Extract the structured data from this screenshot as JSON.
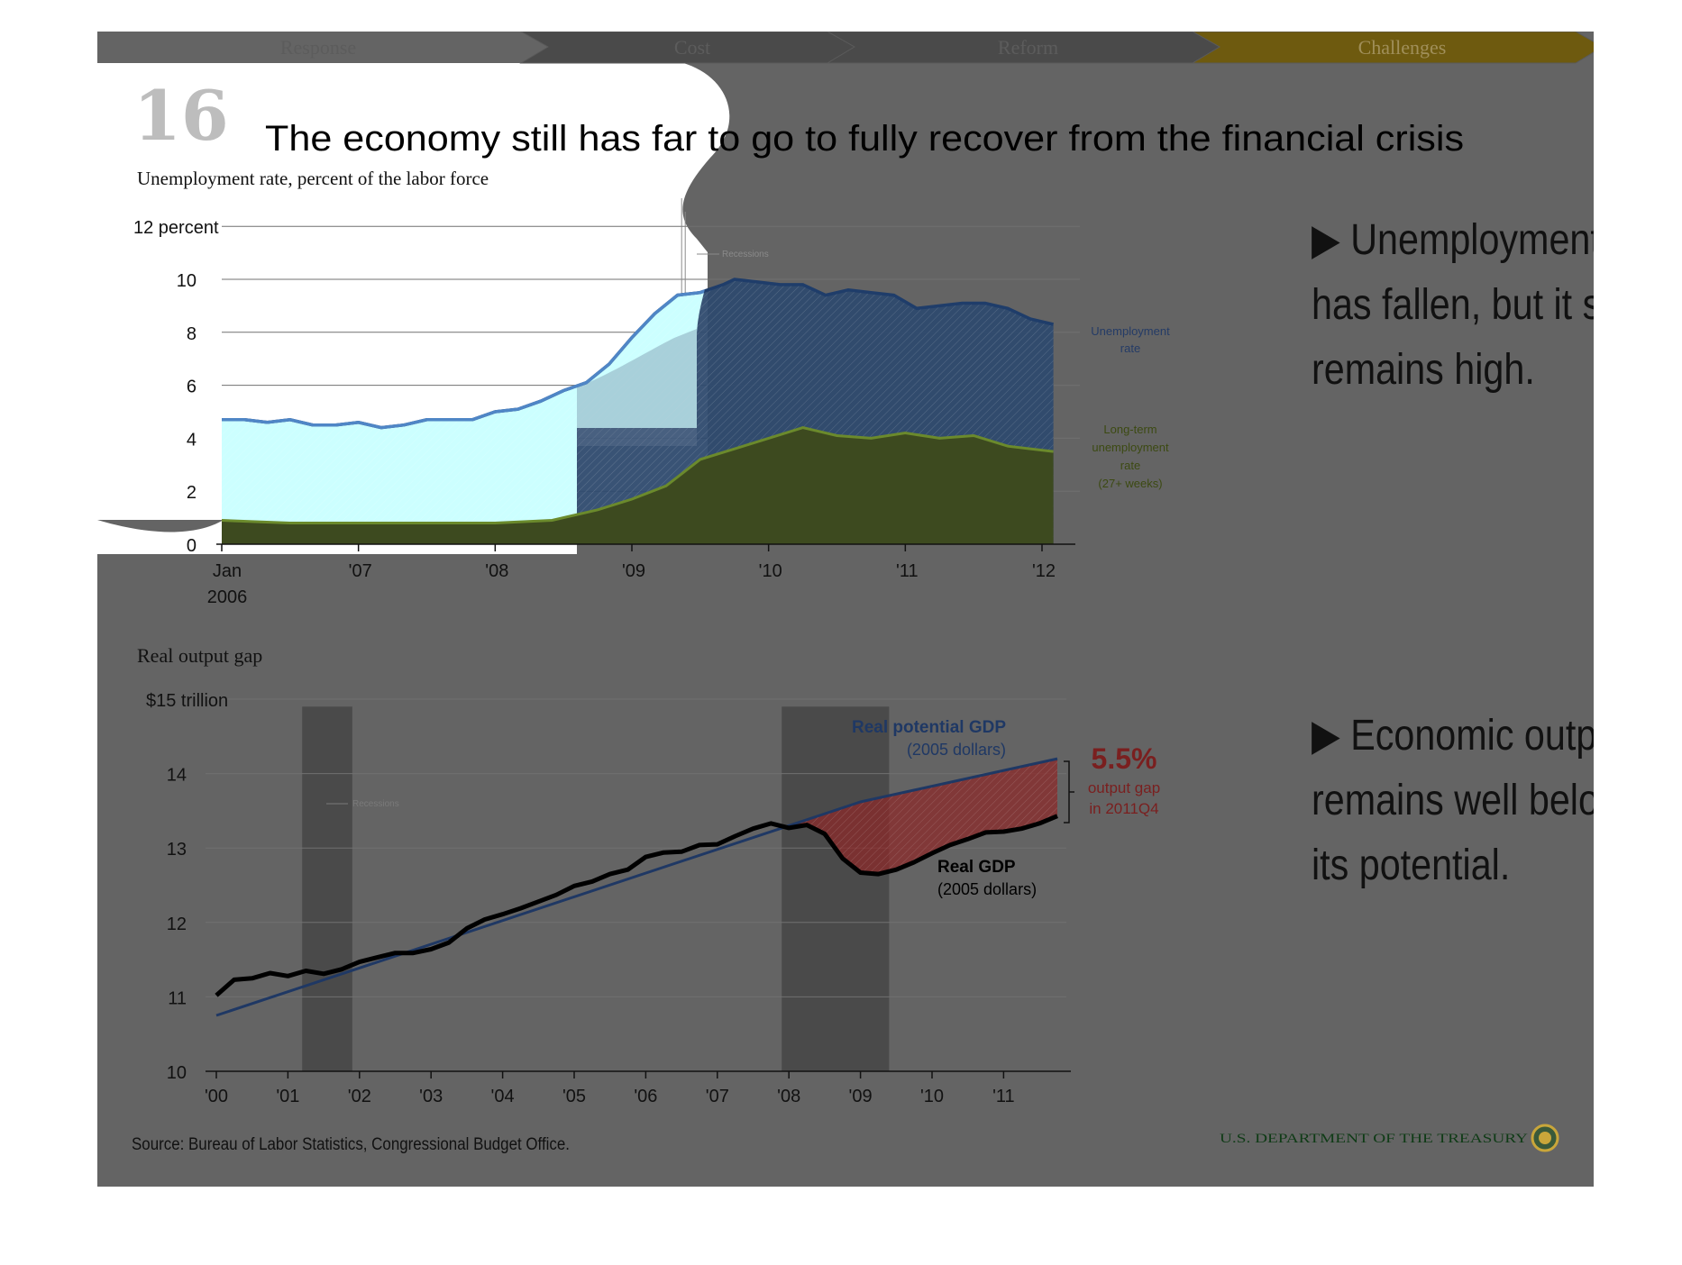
{
  "nav": {
    "tabs": [
      "Response",
      "Cost",
      "Reform",
      "Challenges"
    ],
    "active": "Challenges"
  },
  "slide": {
    "number": "16",
    "title": "The economy still has far to go to fully recover from the financial crisis",
    "source": "Source: Bureau of Labor Statistics, Congressional Budget Office.",
    "footer_org": "U.S. DEPARTMENT OF THE TREASURY",
    "bullets": [
      [
        "▶ Unemployment",
        "has fallen, but it still",
        "remains high."
      ],
      [
        "▶ Economic output",
        "remains well below",
        "its potential."
      ]
    ]
  },
  "colors": {
    "unemployment": "#4f86c6",
    "long_term": "#6b8a2c",
    "potential_gdp": "#1f3864",
    "real_gdp": "#000000",
    "gap_fill": "#8b2a2a",
    "gap_text": "#7a1f1f",
    "challenges_tab": "#6e5a0f"
  },
  "chart_data": [
    {
      "type": "area",
      "title": "Unemployment rate, percent of the labor force",
      "ylabel": "12 percent",
      "ylim": [
        0,
        12
      ],
      "yticks": [
        "0",
        "2",
        "4",
        "6",
        "8",
        "10",
        "12 percent"
      ],
      "xticks": [
        "Jan 2006",
        "'07",
        "'08",
        "'09",
        "'10",
        "'11",
        "'12"
      ],
      "legend": "Recessions",
      "recession": [
        "2007-12",
        "2009-06"
      ],
      "series": [
        {
          "name": "Unemployment rate",
          "x": [
            "2006-01",
            "2006-03",
            "2006-05",
            "2006-07",
            "2006-09",
            "2006-11",
            "2007-01",
            "2007-03",
            "2007-05",
            "2007-07",
            "2007-09",
            "2007-11",
            "2008-01",
            "2008-03",
            "2008-05",
            "2008-07",
            "2008-09",
            "2008-11",
            "2009-01",
            "2009-03",
            "2009-05",
            "2009-07",
            "2009-09",
            "2009-10",
            "2009-12",
            "2010-02",
            "2010-04",
            "2010-06",
            "2010-08",
            "2010-10",
            "2010-12",
            "2011-02",
            "2011-04",
            "2011-06",
            "2011-08",
            "2011-10",
            "2011-12",
            "2012-02"
          ],
          "values": [
            4.7,
            4.7,
            4.6,
            4.7,
            4.5,
            4.5,
            4.6,
            4.4,
            4.5,
            4.7,
            4.7,
            4.7,
            5.0,
            5.1,
            5.4,
            5.8,
            6.1,
            6.8,
            7.8,
            8.7,
            9.4,
            9.5,
            9.8,
            10.0,
            9.9,
            9.8,
            9.8,
            9.4,
            9.6,
            9.5,
            9.4,
            8.9,
            9.0,
            9.1,
            9.1,
            8.9,
            8.5,
            8.3
          ]
        },
        {
          "name": "Long-term unemployment rate (27+ weeks)",
          "x": [
            "2006-01",
            "2006-07",
            "2007-01",
            "2007-07",
            "2008-01",
            "2008-06",
            "2008-10",
            "2009-01",
            "2009-04",
            "2009-07",
            "2009-10",
            "2010-01",
            "2010-04",
            "2010-07",
            "2010-10",
            "2011-01",
            "2011-04",
            "2011-07",
            "2011-10",
            "2012-02"
          ],
          "values": [
            0.9,
            0.8,
            0.8,
            0.8,
            0.8,
            0.9,
            1.3,
            1.7,
            2.2,
            3.2,
            3.6,
            4.0,
            4.4,
            4.1,
            4.0,
            4.2,
            4.0,
            4.1,
            3.7,
            3.5
          ]
        }
      ]
    },
    {
      "type": "line",
      "title": "Real output gap",
      "ylabel": "$15 trillion",
      "ylim": [
        10,
        15
      ],
      "yticks": [
        "10",
        "11",
        "12",
        "13",
        "14",
        "$15 trillion"
      ],
      "xticks": [
        "'00",
        "'01",
        "'02",
        "'03",
        "'04",
        "'05",
        "'06",
        "'07",
        "'08",
        "'09",
        "'10",
        "'11"
      ],
      "legend": "Recessions",
      "recessions": [
        [
          "2001.2",
          "2001.9"
        ],
        [
          "2007.9",
          "2009.4"
        ]
      ],
      "annotation": {
        "value": "5.5%",
        "text": [
          "output gap",
          "in 2011Q4"
        ]
      },
      "series": [
        {
          "name": "Real potential GDP",
          "label": [
            "Real potential GDP",
            "(2005 dollars)"
          ],
          "x": [
            2000.0,
            2008.0,
            2009.0,
            2011.75
          ],
          "values": [
            10.75,
            13.3,
            13.62,
            14.2
          ]
        },
        {
          "name": "Real GDP",
          "label": [
            "Real GDP",
            "(2005 dollars)"
          ],
          "x": [
            2000.0,
            2000.25,
            2000.5,
            2000.75,
            2001.0,
            2001.25,
            2001.5,
            2001.75,
            2002.0,
            2002.25,
            2002.5,
            2002.75,
            2003.0,
            2003.25,
            2003.5,
            2003.75,
            2004.0,
            2004.25,
            2004.5,
            2004.75,
            2005.0,
            2005.25,
            2005.5,
            2005.75,
            2006.0,
            2006.25,
            2006.5,
            2006.75,
            2007.0,
            2007.25,
            2007.5,
            2007.75,
            2008.0,
            2008.25,
            2008.5,
            2008.75,
            2009.0,
            2009.25,
            2009.5,
            2009.75,
            2010.0,
            2010.25,
            2010.5,
            2010.75,
            2011.0,
            2011.25,
            2011.5,
            2011.75
          ],
          "values": [
            11.02,
            11.23,
            11.25,
            11.32,
            11.28,
            11.35,
            11.31,
            11.37,
            11.47,
            11.53,
            11.59,
            11.59,
            11.64,
            11.73,
            11.92,
            12.04,
            12.11,
            12.19,
            12.28,
            12.37,
            12.49,
            12.55,
            12.65,
            12.71,
            12.88,
            12.94,
            12.95,
            13.04,
            13.05,
            13.16,
            13.26,
            13.33,
            13.27,
            13.31,
            13.19,
            12.86,
            12.67,
            12.65,
            12.71,
            12.81,
            12.93,
            13.04,
            13.12,
            13.21,
            13.22,
            13.26,
            13.33,
            13.43
          ]
        }
      ]
    }
  ]
}
